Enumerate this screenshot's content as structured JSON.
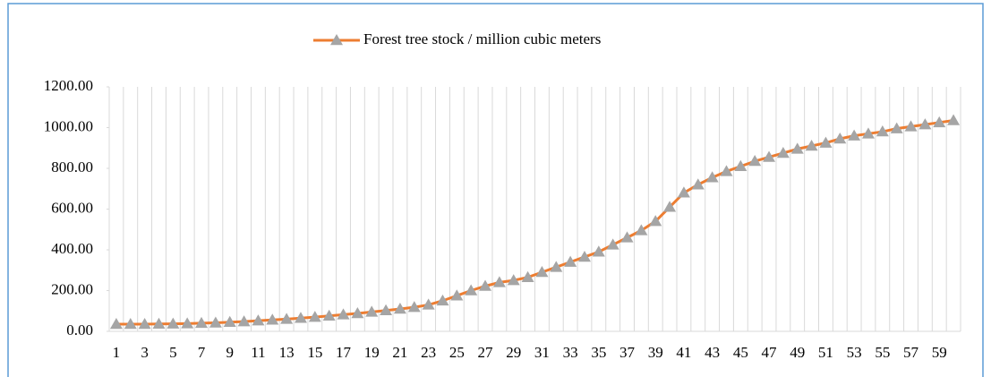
{
  "chart_data": {
    "type": "line",
    "categories": [
      "1",
      null,
      "3",
      null,
      "5",
      null,
      "7",
      null,
      "9",
      null,
      "11",
      null,
      "13",
      null,
      "15",
      null,
      "17",
      null,
      "19",
      null,
      "21",
      null,
      "23",
      null,
      "25",
      null,
      "27",
      null,
      "29",
      null,
      "31",
      null,
      "33",
      null,
      "35",
      null,
      "37",
      null,
      "39",
      null,
      "41",
      null,
      "43",
      null,
      "45",
      null,
      "47",
      null,
      "49",
      null,
      "51",
      null,
      "53",
      null,
      "55",
      null,
      "57",
      null,
      "59",
      null
    ],
    "series": [
      {
        "name": "Forest tree stock / million cubic meters",
        "color": "#ed7d31",
        "marker_color": "#a5a5a5",
        "values": [
          35,
          35,
          35,
          36,
          37,
          38,
          40,
          42,
          45,
          48,
          52,
          56,
          60,
          65,
          70,
          76,
          82,
          88,
          95,
          102,
          110,
          118,
          130,
          150,
          175,
          200,
          222,
          240,
          250,
          265,
          290,
          315,
          340,
          365,
          390,
          425,
          460,
          495,
          540,
          610,
          680,
          720,
          755,
          785,
          810,
          835,
          855,
          875,
          895,
          910,
          925,
          945,
          960,
          970,
          980,
          995,
          1005,
          1015,
          1025,
          1035
        ]
      }
    ],
    "ylim": [
      0,
      1200
    ],
    "yticks": [
      {
        "value": 0,
        "label": "0.00"
      },
      {
        "value": 200,
        "label": "200.00"
      },
      {
        "value": 400,
        "label": "400.00"
      },
      {
        "value": 600,
        "label": "600.00"
      },
      {
        "value": 800,
        "label": "800.00"
      },
      {
        "value": 1000,
        "label": "1000.00"
      },
      {
        "value": 1200,
        "label": "1200.00"
      }
    ],
    "legend": "top",
    "grid": "x"
  }
}
